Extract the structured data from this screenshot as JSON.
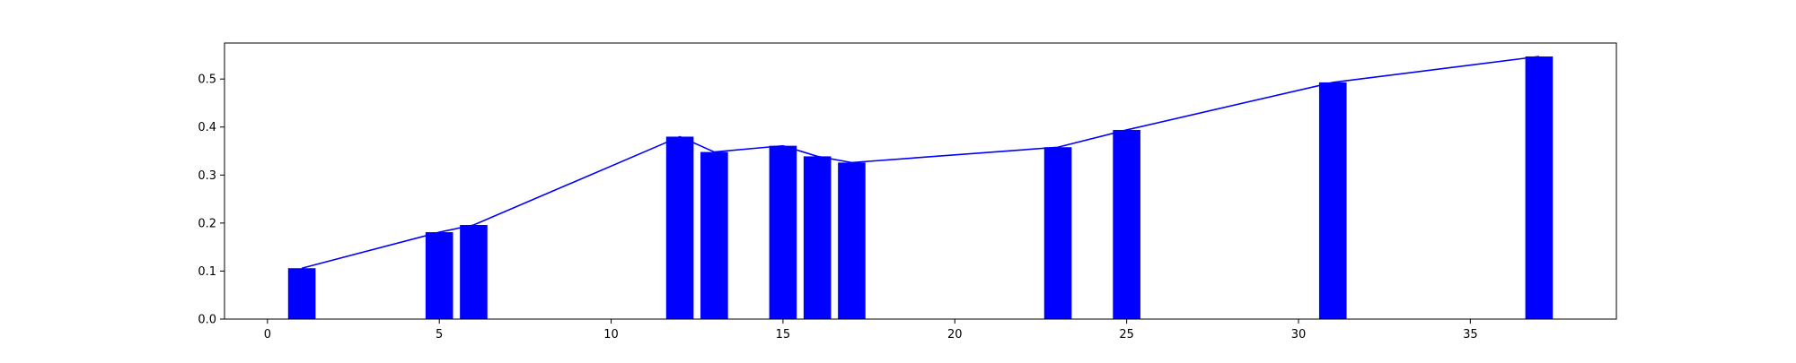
{
  "chart_data": {
    "type": "bar",
    "title": "",
    "xlabel": "",
    "ylabel": "",
    "xlim": [
      -1.25,
      39.25
    ],
    "ylim": [
      0,
      0.575
    ],
    "xticks": [
      0,
      5,
      10,
      15,
      20,
      25,
      30,
      35
    ],
    "yticks": [
      0.0,
      0.1,
      0.2,
      0.3,
      0.4,
      0.5
    ],
    "xtick_labels": [
      "0",
      "5",
      "10",
      "15",
      "20",
      "25",
      "30",
      "35"
    ],
    "ytick_labels": [
      "0.0",
      "0.1",
      "0.2",
      "0.3",
      "0.4",
      "0.5"
    ],
    "bar_width": 0.8,
    "bar_color": "#0000ff",
    "line_color": "#0000ff",
    "grid": false,
    "bars": {
      "x": [
        1,
        5,
        6,
        12,
        13,
        15,
        16,
        17,
        23,
        25,
        31,
        37
      ],
      "values": [
        0.106,
        0.181,
        0.196,
        0.38,
        0.348,
        0.361,
        0.339,
        0.326,
        0.358,
        0.394,
        0.493,
        0.547
      ]
    },
    "line": {
      "x": [
        1,
        5,
        6,
        12,
        13,
        15,
        16,
        17,
        23,
        25,
        31,
        37
      ],
      "values": [
        0.106,
        0.181,
        0.196,
        0.38,
        0.348,
        0.361,
        0.339,
        0.326,
        0.358,
        0.394,
        0.493,
        0.547
      ]
    }
  }
}
